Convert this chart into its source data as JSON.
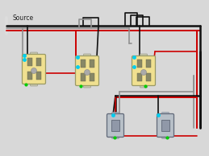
{
  "bg_color": "#d8d8d8",
  "outlet_color": "#f0e090",
  "outlet_border": "#999966",
  "switch_color": "#b8c0c8",
  "wire_black": "#111111",
  "wire_red": "#cc0000",
  "wire_gray": "#909090",
  "wire_white": "#dddddd",
  "cyan": "#00ccee",
  "green": "#00cc00",
  "source_label": "Source",
  "fig_w": 2.59,
  "fig_h": 1.94,
  "dpi": 100
}
